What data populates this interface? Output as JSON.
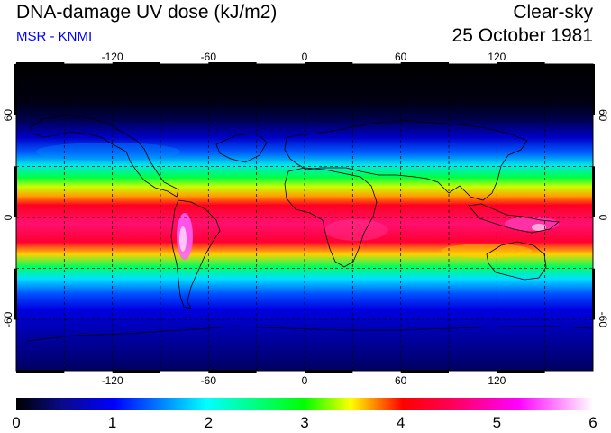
{
  "header": {
    "title": "DNA-damage UV dose (kJ/m2)",
    "subtitle": "MSR - KNMI",
    "condition": "Clear-sky",
    "date": "25 October 1981"
  },
  "colors": {
    "subtitle": "#0000ff",
    "gridlines": "#000000",
    "colormap": [
      "#000000",
      "#0a0a8c",
      "#0000ff",
      "#00ffff",
      "#00ff00",
      "#ffff00",
      "#ff0000",
      "#ff2080",
      "#ff00ff",
      "#ffffff"
    ]
  },
  "map": {
    "projection": "equirectangular",
    "lon_range": [
      -180,
      180
    ],
    "lat_range": [
      -90,
      90
    ],
    "grid": true,
    "grid_style": "dashed",
    "coastlines": true,
    "lon_ticks": [
      {
        "value": -120,
        "label": "-120"
      },
      {
        "value": -60,
        "label": "-60"
      },
      {
        "value": 0,
        "label": "0"
      },
      {
        "value": 60,
        "label": "60"
      },
      {
        "value": 120,
        "label": "120"
      }
    ],
    "lat_ticks": [
      {
        "value": 60,
        "label": "60"
      },
      {
        "value": 0,
        "label": "0"
      },
      {
        "value": -60,
        "label": "-60"
      }
    ],
    "right_lat_ticks": [
      {
        "value": 60,
        "label": "60"
      },
      {
        "value": 0,
        "label": "0"
      },
      {
        "value": -60,
        "label": "-60"
      }
    ]
  },
  "colorbar": {
    "min": 0,
    "max": 6,
    "ticks": [
      "0",
      "1",
      "2",
      "3",
      "4",
      "5",
      "6"
    ]
  }
}
